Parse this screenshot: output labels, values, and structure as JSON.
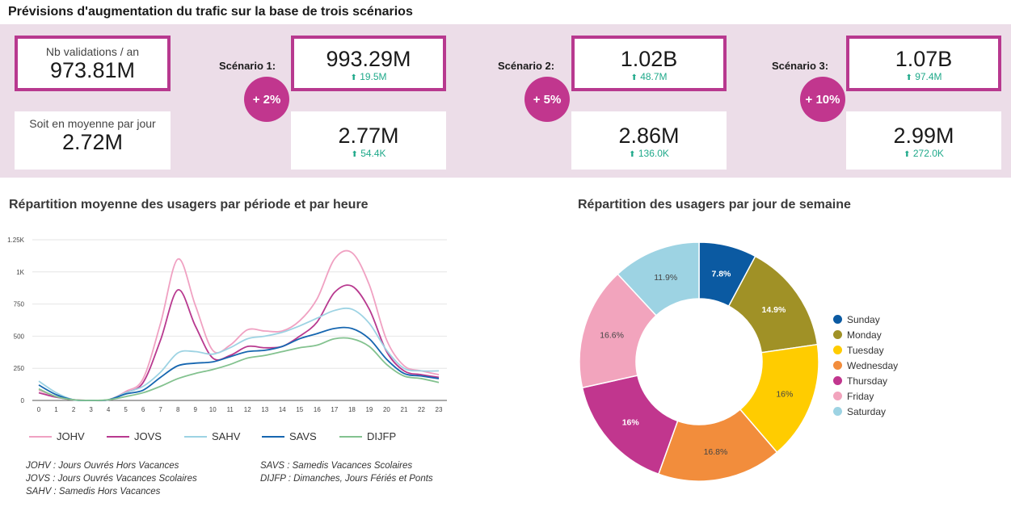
{
  "page_title": "Prévisions d'augmentation du trafic sur la base de trois scénarios",
  "kpis": {
    "annual": {
      "label": "Nb validations / an",
      "value": "973.81M"
    },
    "daily": {
      "label": "Soit en moyenne par jour",
      "value": "2.72M"
    }
  },
  "scenarios": [
    {
      "label": "Scénario 1:",
      "pct": "+ 2%",
      "annual_value": "993.29M",
      "annual_delta": "19.5M",
      "daily_value": "2.77M",
      "daily_delta": "54.4K"
    },
    {
      "label": "Scénario 2:",
      "pct": "+ 5%",
      "annual_value": "1.02B",
      "annual_delta": "48.7M",
      "daily_value": "2.86M",
      "daily_delta": "136.0K"
    },
    {
      "label": "Scénario 3:",
      "pct": "+ 10%",
      "annual_value": "1.07B",
      "annual_delta": "97.4M",
      "daily_value": "2.99M",
      "daily_delta": "272.0K"
    }
  ],
  "line_section_title": "Répartition moyenne des usagers par période et par heure",
  "pie_section_title": "Répartition des usagers par jour de semaine",
  "notes_left": [
    "JOHV : Jours Ouvrés Hors Vacances",
    "JOVS : Jours Ouvrés Vacances Scolaires",
    "SAHV : Samedis Hors Vacances"
  ],
  "notes_right": [
    "SAVS : Samedis Vacances Scolaires",
    "DIJFP : Dimanches, Jours Fériés et Ponts"
  ],
  "chart_data": [
    {
      "type": "line",
      "title": "Répartition moyenne des usagers par période et par heure",
      "x": [
        0,
        1,
        2,
        3,
        4,
        5,
        6,
        7,
        8,
        9,
        10,
        11,
        12,
        13,
        14,
        15,
        16,
        17,
        18,
        19,
        20,
        21,
        22,
        23
      ],
      "y_ticks": [
        0,
        250,
        500,
        750,
        1000,
        1250
      ],
      "y_tick_labels": [
        "0",
        "250",
        "500",
        "750",
        "1K",
        "1.25K"
      ],
      "ylim": [
        0,
        1250
      ],
      "grid": true,
      "legend_position": "bottom",
      "series": [
        {
          "name": "JOHV",
          "color": "#f0a1c2",
          "values": [
            80,
            30,
            5,
            0,
            5,
            70,
            170,
            600,
            1100,
            740,
            390,
            430,
            550,
            540,
            540,
            620,
            790,
            1100,
            1150,
            900,
            470,
            270,
            230,
            200
          ]
        },
        {
          "name": "JOVS",
          "color": "#b8398f",
          "values": [
            60,
            25,
            5,
            0,
            5,
            60,
            140,
            470,
            860,
            580,
            330,
            350,
            420,
            410,
            420,
            500,
            610,
            840,
            890,
            710,
            380,
            230,
            200,
            180
          ]
        },
        {
          "name": "SAHV",
          "color": "#9dd3e3",
          "values": [
            150,
            60,
            5,
            0,
            5,
            60,
            110,
            220,
            370,
            380,
            360,
            410,
            480,
            500,
            530,
            580,
            640,
            700,
            710,
            600,
            390,
            250,
            230,
            230
          ]
        },
        {
          "name": "SAVS",
          "color": "#1666b0",
          "values": [
            120,
            45,
            5,
            0,
            5,
            50,
            80,
            180,
            270,
            290,
            300,
            340,
            380,
            390,
            420,
            480,
            520,
            560,
            560,
            480,
            320,
            210,
            190,
            170
          ]
        },
        {
          "name": "DIJFP",
          "color": "#83c28f",
          "values": [
            90,
            30,
            5,
            0,
            5,
            30,
            60,
            110,
            170,
            210,
            240,
            280,
            330,
            350,
            380,
            410,
            430,
            480,
            480,
            420,
            280,
            190,
            170,
            140
          ]
        }
      ]
    },
    {
      "type": "pie",
      "title": "Répartition des usagers par jour de semaine",
      "legend_position": "right",
      "slices": [
        {
          "name": "Sunday",
          "value": 7.8,
          "label": "7.8%",
          "color": "#0b5aa2"
        },
        {
          "name": "Monday",
          "value": 14.9,
          "label": "14.9%",
          "color": "#a09126"
        },
        {
          "name": "Tuesday",
          "value": 16,
          "label": "16%",
          "color": "#ffcc00"
        },
        {
          "name": "Wednesday",
          "value": 16.8,
          "label": "16.8%",
          "color": "#f28d3c"
        },
        {
          "name": "Thursday",
          "value": 16,
          "label": "16%",
          "color": "#c1368e"
        },
        {
          "name": "Friday",
          "value": 16.6,
          "label": "16.6%",
          "color": "#f2a4bd"
        },
        {
          "name": "Saturday",
          "value": 11.9,
          "label": "11.9%",
          "color": "#9dd3e3"
        }
      ]
    }
  ]
}
